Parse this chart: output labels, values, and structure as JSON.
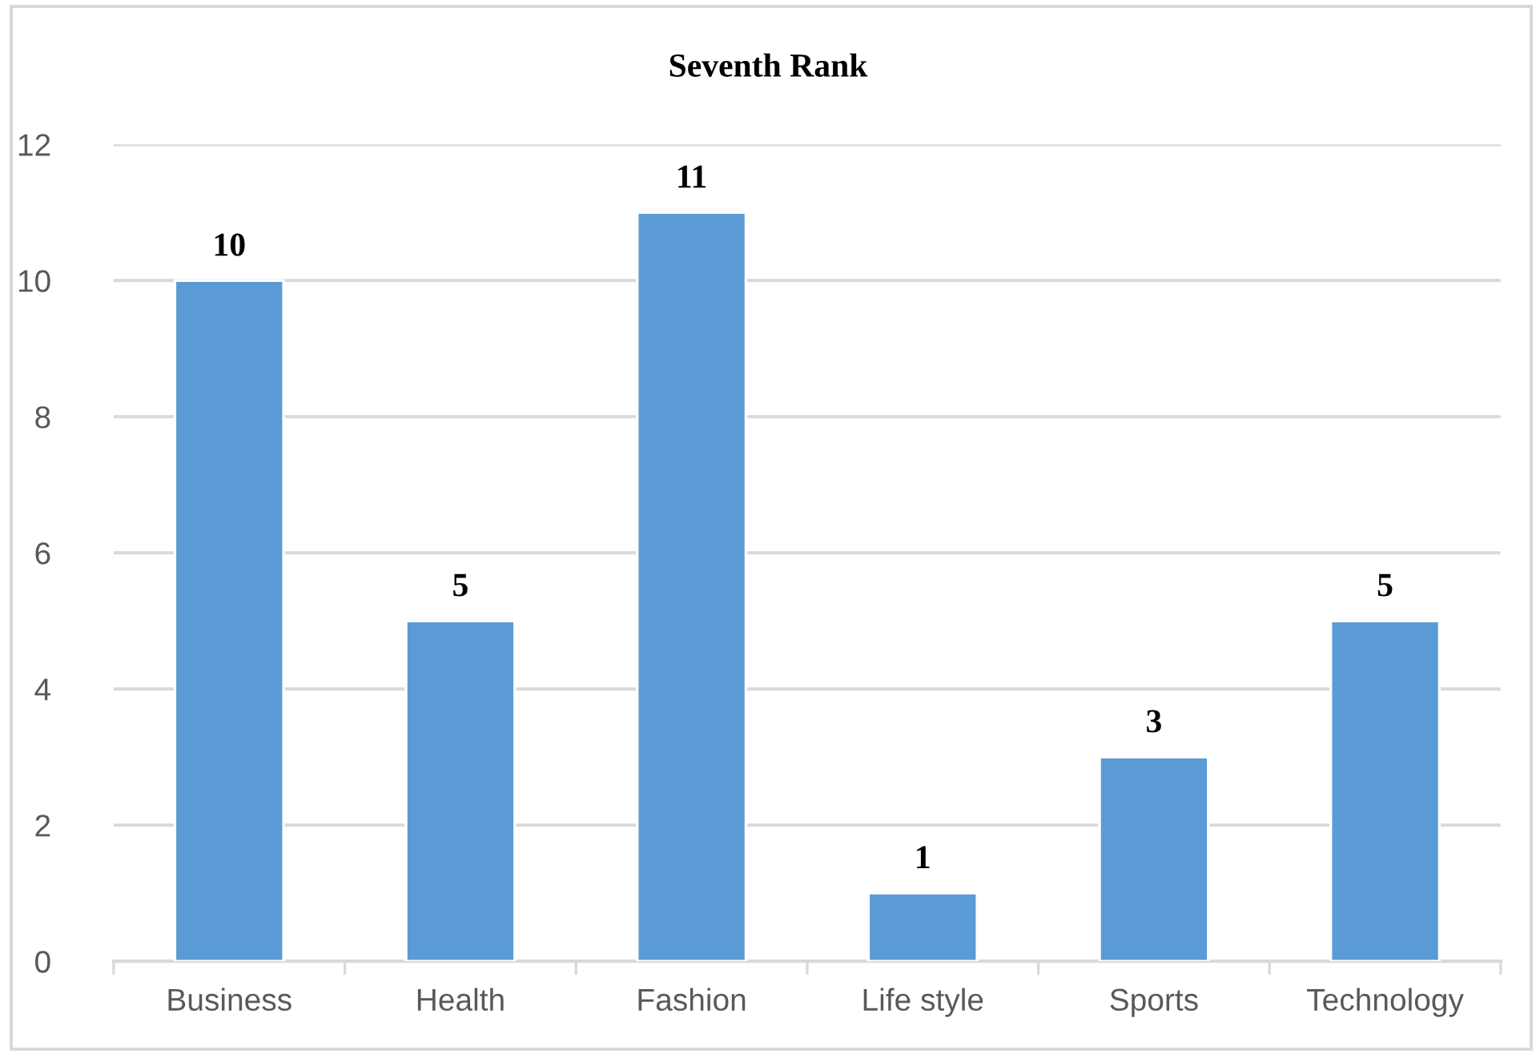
{
  "chart_data": {
    "type": "bar",
    "title": "Seventh Rank",
    "categories": [
      "Business",
      "Health",
      "Fashion",
      "Life style",
      "Sports",
      "Technology"
    ],
    "values": [
      10,
      5,
      11,
      1,
      3,
      5
    ],
    "color": "#5b9bd5",
    "ylim": [
      0,
      12
    ],
    "yticks": [
      0,
      2,
      4,
      6,
      8,
      10,
      12
    ],
    "grid": "y",
    "data_labels": true
  }
}
